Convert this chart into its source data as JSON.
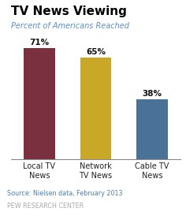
{
  "title": "TV News Viewing",
  "subtitle": "Percent of Americans Reached",
  "categories": [
    "Local TV\nNews",
    "Network\nTV News",
    "Cable TV\nNews"
  ],
  "values": [
    71,
    65,
    38
  ],
  "bar_colors": [
    "#7b3040",
    "#c9a827",
    "#4a7299"
  ],
  "bar_labels": [
    "71%",
    "65%",
    "38%"
  ],
  "source": "Source: Nielsen data, February 2013",
  "footer": "PEW RESEARCH CENTER",
  "ylim": [
    0,
    80
  ],
  "background_color": "#ffffff",
  "title_color": "#000000",
  "subtitle_color": "#5a8fbf",
  "source_color": "#4a7faf",
  "footer_color": "#aaaaaa"
}
